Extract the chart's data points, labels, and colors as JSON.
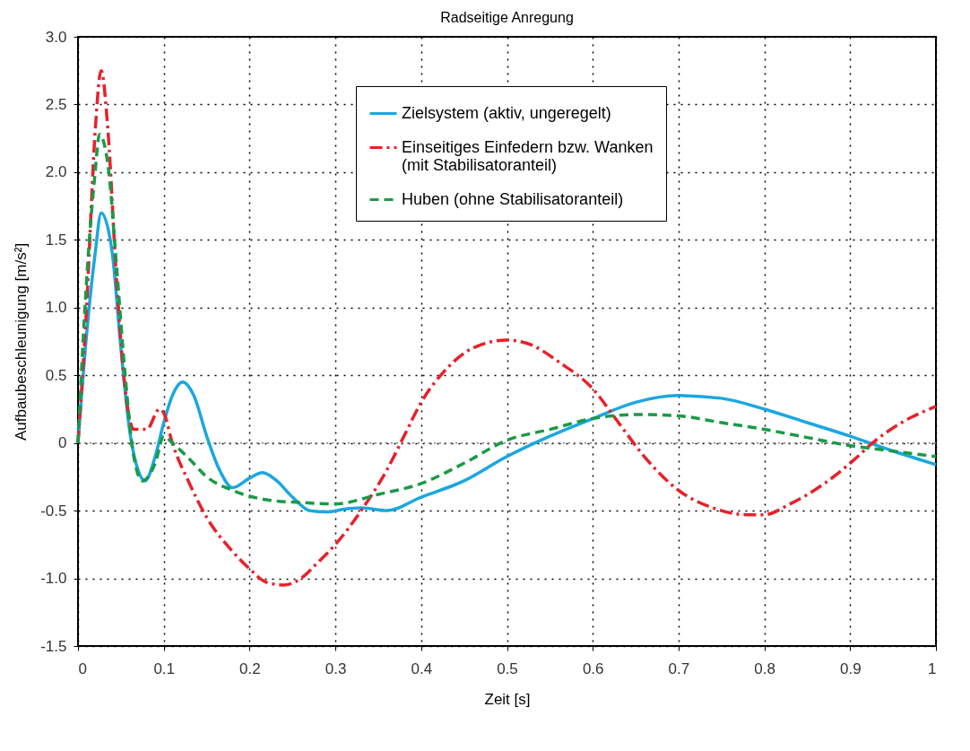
{
  "chart_data": {
    "type": "line",
    "title": "Radseitige Anregung",
    "xlabel": "Zeit [s]",
    "ylabel": "Aufbaubeschleunigung [m/s²]",
    "xlim": [
      0,
      1
    ],
    "xticks": [
      0,
      0.1,
      0.2,
      0.3,
      0.4,
      0.5,
      0.6,
      0.7,
      0.8,
      0.9,
      1
    ],
    "ylim": [
      -1.5,
      3.0
    ],
    "yticks": [
      {
        "value": -1.5,
        "label": "-1.5"
      },
      {
        "value": -1.0,
        "label": "-1.0"
      },
      {
        "value": -0.5,
        "label": "-0.5"
      },
      0,
      {
        "value": 0.5,
        "label": "0.5"
      },
      {
        "value": 1.0,
        "label": "1.0"
      },
      {
        "value": 1.5,
        "label": "1.5"
      },
      {
        "value": 2.0,
        "label": "2.0"
      },
      {
        "value": 2.5,
        "label": "2.5"
      },
      {
        "value": 3.0,
        "label": "3.0"
      }
    ],
    "grid": true,
    "legend": "top",
    "marker": "none",
    "ref_lines": [
      {
        "axis": "y",
        "value": 0,
        "color": "#808080",
        "line_style": "dotted"
      }
    ],
    "series": [
      {
        "name": "Zielsystem (aktiv, ungeregelt)",
        "color": "#1aa7e0",
        "line_style": "solid",
        "x": [
          0,
          0.01,
          0.02,
          0.027,
          0.04,
          0.05,
          0.06,
          0.07,
          0.078,
          0.09,
          0.1,
          0.11,
          0.122,
          0.135,
          0.15,
          0.165,
          0.18,
          0.2,
          0.215,
          0.23,
          0.25,
          0.27,
          0.29,
          0.31,
          0.33,
          0.36,
          0.4,
          0.45,
          0.5,
          0.55,
          0.6,
          0.65,
          0.7,
          0.75,
          0.8,
          0.85,
          0.9,
          0.95,
          1.0
        ],
        "values": [
          0,
          0.8,
          1.4,
          1.7,
          1.4,
          0.7,
          0.1,
          -0.2,
          -0.28,
          -0.1,
          0.15,
          0.35,
          0.45,
          0.35,
          0.05,
          -0.2,
          -0.33,
          -0.26,
          -0.22,
          -0.27,
          -0.4,
          -0.5,
          -0.51,
          -0.49,
          -0.48,
          -0.5,
          -0.4,
          -0.28,
          -0.1,
          0.05,
          0.18,
          0.3,
          0.35,
          0.33,
          0.25,
          0.15,
          0.05,
          -0.06,
          -0.16
        ]
      },
      {
        "name": "Einseitiges Einfedern bzw. Wanken\n(mit Stabilisatoranteil)",
        "color": "#e8202a",
        "line_style": "dashdot",
        "x": [
          0,
          0.01,
          0.02,
          0.027,
          0.035,
          0.045,
          0.055,
          0.065,
          0.08,
          0.095,
          0.1,
          0.11,
          0.13,
          0.15,
          0.18,
          0.2,
          0.22,
          0.24,
          0.26,
          0.28,
          0.3,
          0.33,
          0.36,
          0.38,
          0.4,
          0.43,
          0.46,
          0.5,
          0.53,
          0.56,
          0.6,
          0.63,
          0.66,
          0.7,
          0.74,
          0.78,
          0.8,
          0.83,
          0.87,
          0.9,
          0.93,
          0.96,
          1.0
        ],
        "values": [
          0,
          1.0,
          2.3,
          2.75,
          2.3,
          1.2,
          0.4,
          0.1,
          0.1,
          0.25,
          0.22,
          0.0,
          -0.3,
          -0.55,
          -0.8,
          -0.93,
          -1.03,
          -1.05,
          -1.0,
          -0.88,
          -0.75,
          -0.5,
          -0.2,
          0.05,
          0.3,
          0.55,
          0.7,
          0.76,
          0.72,
          0.6,
          0.4,
          0.15,
          -0.1,
          -0.35,
          -0.48,
          -0.53,
          -0.53,
          -0.45,
          -0.3,
          -0.15,
          0.02,
          0.15,
          0.27
        ]
      },
      {
        "name": "Huben (ohne Stabilisatoranteil)",
        "color": "#1a9a48",
        "line_style": "dashed",
        "x": [
          0,
          0.01,
          0.02,
          0.025,
          0.035,
          0.045,
          0.055,
          0.065,
          0.075,
          0.09,
          0.1,
          0.11,
          0.13,
          0.15,
          0.18,
          0.22,
          0.26,
          0.3,
          0.35,
          0.4,
          0.45,
          0.5,
          0.55,
          0.6,
          0.65,
          0.7,
          0.75,
          0.8,
          0.85,
          0.9,
          0.95,
          1.0
        ],
        "values": [
          0,
          1.2,
          2.0,
          2.28,
          2.05,
          1.3,
          0.5,
          -0.1,
          -0.28,
          -0.15,
          0.05,
          0.0,
          -0.12,
          -0.25,
          -0.35,
          -0.42,
          -0.44,
          -0.45,
          -0.38,
          -0.3,
          -0.15,
          0.02,
          0.1,
          0.18,
          0.21,
          0.2,
          0.15,
          0.1,
          0.04,
          -0.02,
          -0.06,
          -0.1
        ]
      }
    ]
  }
}
